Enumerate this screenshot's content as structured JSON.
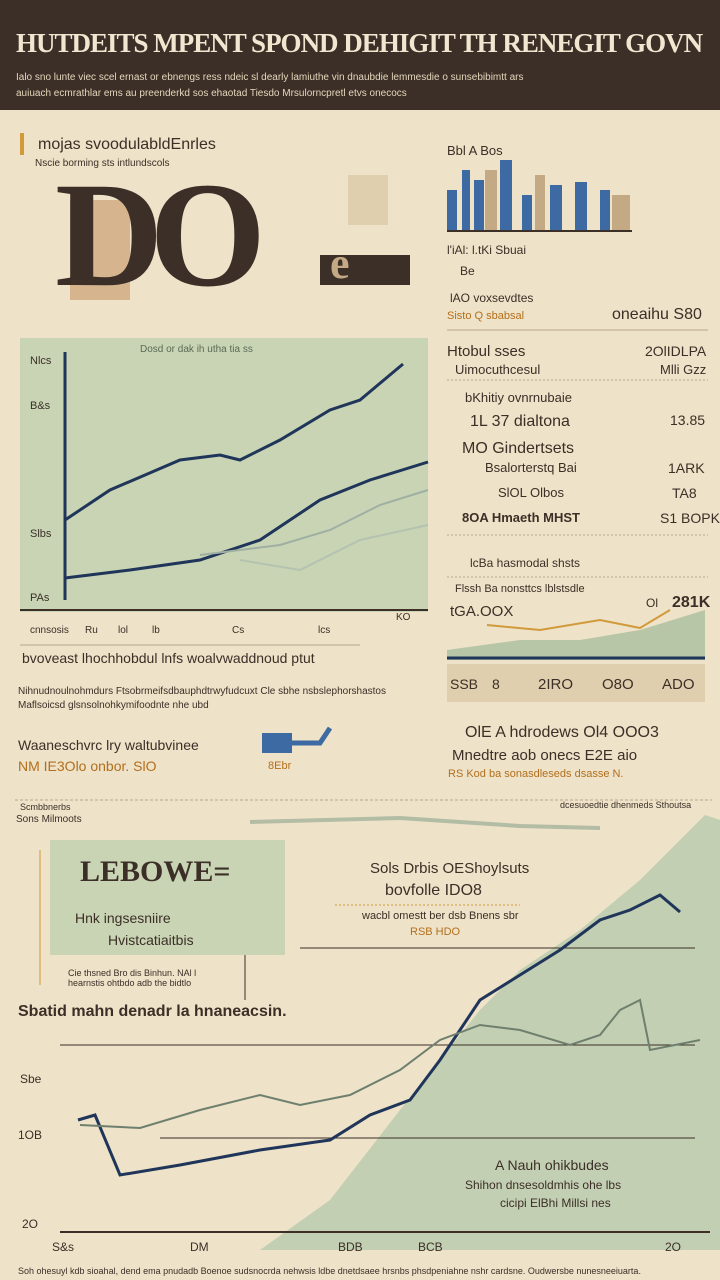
{
  "header": {
    "title": "HUTDEITS MPENT SPOND DEHIGIT TH RENEGIT GOVN",
    "subtitle": [
      "Ialo sno lunte viec scel ernast or ebnengs ress ndeic sl dearly lamiuthe vin dnaubdie lemmesdie o sunsebibimtt ars",
      "auiuach ecmrathlar ems au preenderkd sos ehaotad Tiesdo Mrsulorncpretl etvs onecocs"
    ]
  },
  "hero": {
    "heading": "mojas svoodulabldEnrles",
    "subheading": "Nscie borming sts intlundscols",
    "big": "DO",
    "small": "e"
  },
  "bars_panel": {
    "title": "Bbl A Bos",
    "caption": "l'iAl: l.tKi Sbuai",
    "note": "Be",
    "stat1": "lAO voxsevdtes",
    "stat2": "Sisto Q sbabsal",
    "stat3": "oneaihu S80"
  },
  "main_chart": {
    "title": "Dosd or dak ih utha tia ss",
    "y_labels": [
      "Nlcs",
      "B&s",
      "Slbs",
      "PAs"
    ],
    "x_labels": [
      "cnnsosis",
      "Ru",
      "lol",
      "lb",
      "Cs",
      "lcs",
      "KO"
    ]
  },
  "list": {
    "title": "Htobul sses",
    "subtitle": "Uimocuthcesul",
    "values_top": [
      "2OlIDLPA",
      "Mlli Gzz"
    ],
    "rows": [
      {
        "label": "bKhitiy ovnrnubaie",
        "value": ""
      },
      {
        "label": "1L 37 dialtona",
        "value": "13.85"
      },
      {
        "label": "MO Gindertsets",
        "value": ""
      },
      {
        "label": "Bsalorterstq Bai",
        "value": "1ARK"
      },
      {
        "label": "SlOL Olbos",
        "value": "TA8"
      },
      {
        "label": "8OA Hmaeth MHST",
        "value": "S1 BOPK"
      }
    ]
  },
  "small_chart": {
    "title": "lcBa hasmodal shsts",
    "label": "Flssh Ba nonsttcs lblstsdle",
    "left": "tGA.OOX",
    "right": "281K",
    "small": "Ol",
    "cells": [
      "SSB",
      "8",
      "2IRO",
      "O8O",
      "ADO"
    ]
  },
  "mid_text": {
    "line1": "bvoveast lhochhobdul lnfs woalvwaddnoud ptut",
    "line2": "Nihnudnoulnohmdurs Ftsobrmeifsdbauphdtrwyfudcuxt Cle sbhe nsbslephorshastos",
    "line3": "Maflsoicsd glsnsolnohkymifoodnte nhe ubd"
  },
  "row": {
    "left1": "Waaneschvrc lry waltubvinee",
    "left2": "NM IE3Olo onbor. SlO",
    "icon_label": "8Ebr",
    "right1": "OlE A hdrodews Ol4 OOO3",
    "right2": "Mnedtre aob onecs E2E aio",
    "right3": "RS Kod ba sonasdleseds dsasse N."
  },
  "divider": {
    "left": "Scmbbnerbs",
    "left2": "Sons Milmoots",
    "right": "dcesuoedtie dhenmeds Sthoutsa"
  },
  "bottom": {
    "box_title": "LEBOWE=",
    "box_line1": "Hnk ingsesniire",
    "box_line2": "Hvistcatiaitbis",
    "note1": "Sols Drbis OEShoylsuts",
    "note2": "bovfolle IDO8",
    "note3": "wacbl omestt ber dsb Bnens sbr",
    "note4": "RSB HDO",
    "tiny": "Cie thsned Bro dis Binhun. NAl l hearnstis ohtbdo adb the bidtlo",
    "heading": "Sbatid mahn denadr la hnaneacsin.",
    "y_labels": [
      "Sbe",
      "1OB",
      "2O"
    ],
    "x_labels": [
      "S&s",
      "DM",
      "BDB",
      "BCB",
      "2O"
    ],
    "ann1": "A Nauh ohikbudes",
    "ann2": "Shihon dnsesoldmhis ohe lbs",
    "ann3": "cicipi ElBhi Millsi nes"
  },
  "footer": "Soh ohesuyl kdb sioahal, dend ema pnudadb Boenoe sudsnocrda nehwsis ldbe dnetdsaee hrsnbs phsdpeniahne nshr cardsne. Oudwersbe nunesneeiuarta."
}
